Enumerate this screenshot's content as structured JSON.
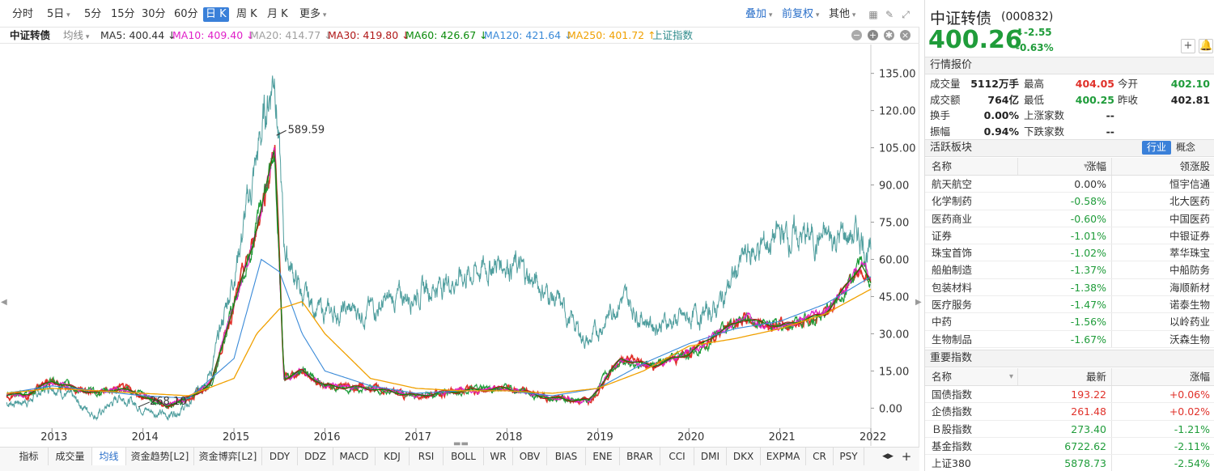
{
  "toolbar": {
    "periods": [
      {
        "label": "分时"
      },
      {
        "label": "5日",
        "dropdown": true
      },
      {
        "label": "5分"
      },
      {
        "label": "15分"
      },
      {
        "label": "30分"
      },
      {
        "label": "60分"
      },
      {
        "label": "日 K",
        "active": true
      },
      {
        "label": "周 K"
      },
      {
        "label": "月 K"
      },
      {
        "label": "更多",
        "dropdown": true
      }
    ],
    "overlay": "叠加",
    "adjust": "前复权",
    "other": "其他"
  },
  "ma_bar": {
    "name": "中证转债",
    "ma_label": "均线",
    "items": [
      {
        "text": "MA5: 400.44 ↓",
        "color": "#333333"
      },
      {
        "text": "MA10: 409.40 ↓",
        "color": "#e020c8"
      },
      {
        "text": "MA20: 414.77 ↓",
        "color": "#a0a0a0"
      },
      {
        "text": "MA30: 419.80 ↓",
        "color": "#b01818"
      },
      {
        "text": "MA60: 426.67 ↓",
        "color": "#0a8a0a"
      },
      {
        "text": "MA120: 421.64 ↓",
        "color": "#3a8ad8"
      },
      {
        "text": "MA250: 401.72 ↑",
        "color": "#f0a000"
      },
      {
        "text": "上证指数",
        "color": "#2e8b8b"
      }
    ]
  },
  "chart_data": {
    "type": "line",
    "title": "",
    "y_ticks": [
      "135.00",
      "120.00",
      "105.00",
      "90.00",
      "75.00",
      "60.00",
      "45.00",
      "30.00",
      "15.00",
      "0.00"
    ],
    "x_ticks": [
      "2013",
      "2014",
      "2015",
      "2016",
      "2017",
      "2018",
      "2019",
      "2020",
      "2021",
      "2022"
    ],
    "annotations": [
      {
        "text": "589.59",
        "at": "max"
      },
      {
        "text": "268.10",
        "at": "min"
      }
    ],
    "colors": {
      "index": "#4f9e9e",
      "price_up": "#e0312a",
      "price_down": "#1f9c3a",
      "ma5": "#333333",
      "ma10": "#e020c8",
      "ma30": "#b01818",
      "ma60": "#0a8a0a",
      "ma120": "#3a8ad8",
      "ma250": "#f0a000"
    },
    "series_shanghai_index": {
      "x": [
        2012.5,
        2012.75,
        2013.0,
        2013.25,
        2013.5,
        2013.75,
        2014.0,
        2014.25,
        2014.5,
        2014.75,
        2015.0,
        2015.2,
        2015.45,
        2015.55,
        2015.75,
        2016.0,
        2016.5,
        2017.0,
        2017.5,
        2018.0,
        2018.5,
        2018.9,
        2019.25,
        2019.6,
        2020.0,
        2020.3,
        2020.6,
        2021.0,
        2021.5,
        2021.9,
        2022.0
      ],
      "y": [
        2.0,
        3.0,
        10.0,
        3.0,
        -3.0,
        5.0,
        0.0,
        -3.0,
        1.0,
        15.0,
        55.0,
        90.0,
        140.0,
        65.0,
        45.0,
        38.0,
        40.0,
        47.0,
        53.0,
        60.0,
        45.0,
        26.0,
        45.0,
        34.0,
        36.0,
        40.0,
        60.0,
        70.0,
        68.0,
        70.0,
        60.0
      ]
    },
    "series_bond_index": {
      "x": [
        2012.5,
        2012.75,
        2013.0,
        2013.25,
        2013.5,
        2013.75,
        2014.0,
        2014.25,
        2014.5,
        2014.75,
        2015.0,
        2015.2,
        2015.45,
        2015.55,
        2015.75,
        2016.0,
        2016.5,
        2017.0,
        2017.5,
        2018.0,
        2018.5,
        2018.9,
        2019.25,
        2019.6,
        2020.0,
        2020.3,
        2020.6,
        2021.0,
        2021.5,
        2021.9,
        2022.0
      ],
      "y": [
        5.0,
        6.0,
        11.0,
        8.0,
        6.0,
        8.0,
        5.0,
        1.0,
        4.0,
        10.0,
        42.0,
        65.0,
        105.0,
        12.0,
        15.0,
        9.0,
        8.0,
        5.0,
        7.0,
        8.0,
        4.0,
        3.0,
        20.0,
        17.0,
        22.0,
        30.0,
        36.0,
        33.0,
        38.0,
        58.0,
        50.0
      ]
    },
    "series_ma250": {
      "x": [
        2012.5,
        2013.0,
        2013.5,
        2014.0,
        2014.5,
        2015.0,
        2015.25,
        2015.5,
        2015.75,
        2016.0,
        2016.5,
        2017.0,
        2017.5,
        2018.0,
        2018.5,
        2019.0,
        2019.5,
        2020.0,
        2020.5,
        2021.0,
        2021.5,
        2022.0
      ],
      "y": [
        6.0,
        8.0,
        7.0,
        6.0,
        5.0,
        12.0,
        30.0,
        40.0,
        43.0,
        30.0,
        12.0,
        8.0,
        7.0,
        7.0,
        6.0,
        8.0,
        15.0,
        25.0,
        28.0,
        32.0,
        38.0,
        48.0
      ]
    },
    "series_ma120": {
      "x": [
        2012.5,
        2013.0,
        2013.5,
        2014.0,
        2014.5,
        2015.0,
        2015.3,
        2015.5,
        2015.75,
        2016.0,
        2016.5,
        2017.0,
        2017.5,
        2018.0,
        2018.5,
        2019.0,
        2019.5,
        2020.0,
        2020.5,
        2021.0,
        2021.5,
        2022.0
      ],
      "y": [
        6.0,
        9.0,
        7.0,
        5.0,
        4.0,
        20.0,
        60.0,
        55.0,
        30.0,
        15.0,
        9.0,
        6.0,
        7.0,
        7.0,
        5.0,
        8.0,
        18.0,
        26.0,
        32.0,
        35.0,
        42.0,
        53.0
      ]
    }
  },
  "quote": {
    "name": "中证转债",
    "code": "(000832)",
    "price": "400.26",
    "change": "⬇-2.55",
    "pct": "-0.63%"
  },
  "market": {
    "header": "行情报价",
    "rows": [
      [
        {
          "l": "成交量",
          "v": "5112万手"
        },
        {
          "l": "最高",
          "v": "404.05",
          "c": "red"
        },
        {
          "l": "今开",
          "v": "402.10",
          "c": "green"
        }
      ],
      [
        {
          "l": "成交额",
          "v": "764亿"
        },
        {
          "l": "最低",
          "v": "400.25",
          "c": "green"
        },
        {
          "l": "昨收",
          "v": "402.81"
        }
      ],
      [
        {
          "l": "换手",
          "v": "0.00%"
        },
        {
          "l": "上涨家数",
          "v": "--"
        }
      ],
      [
        {
          "l": "振幅",
          "v": "0.94%"
        },
        {
          "l": "下跌家数",
          "v": "--"
        }
      ]
    ]
  },
  "sectors": {
    "header": "活跃板块",
    "tab_industry": "行业",
    "tab_concept": "概念",
    "col_name": "名称",
    "col_change": "涨幅",
    "col_leader": "领涨股",
    "rows": [
      {
        "name": "航天航空",
        "change": "0.00%",
        "leader": "恒宇信通",
        "c": ""
      },
      {
        "name": "化学制药",
        "change": "-0.58%",
        "leader": "北大医药",
        "c": "green"
      },
      {
        "name": "医药商业",
        "change": "-0.60%",
        "leader": "中国医药",
        "c": "green"
      },
      {
        "name": "证券",
        "change": "-1.01%",
        "leader": "中银证券",
        "c": "green"
      },
      {
        "name": "珠宝首饰",
        "change": "-1.02%",
        "leader": "萃华珠宝",
        "c": "green"
      },
      {
        "name": "船舶制造",
        "change": "-1.37%",
        "leader": "中船防务",
        "c": "green"
      },
      {
        "name": "包装材料",
        "change": "-1.38%",
        "leader": "海顺新材",
        "c": "green"
      },
      {
        "name": "医疗服务",
        "change": "-1.47%",
        "leader": "诺泰生物",
        "c": "green"
      },
      {
        "name": "中药",
        "change": "-1.56%",
        "leader": "以岭药业",
        "c": "green"
      },
      {
        "name": "生物制品",
        "change": "-1.67%",
        "leader": "沃森生物",
        "c": "green"
      }
    ]
  },
  "indices": {
    "header": "重要指数",
    "col_name": "名称",
    "col_latest": "最新",
    "col_change": "涨幅",
    "rows": [
      {
        "name": "国债指数",
        "latest": "193.22",
        "change": "+0.06%",
        "c": "red"
      },
      {
        "name": "企债指数",
        "latest": "261.48",
        "change": "+0.02%",
        "c": "red"
      },
      {
        "name": "Ｂ股指数",
        "latest": "273.40",
        "change": "-1.21%",
        "c": "green"
      },
      {
        "name": "基金指数",
        "latest": "6722.62",
        "change": "-2.11%",
        "c": "green"
      },
      {
        "name": "上证380",
        "latest": "5878.73",
        "change": "-2.54%",
        "c": "green"
      }
    ]
  },
  "bottom_tabs": [
    {
      "label": "指标"
    },
    {
      "label": "成交量"
    },
    {
      "label": "均线",
      "active": true
    },
    {
      "label": "资金趋势[L2]"
    },
    {
      "label": "资金博弈[L2]"
    },
    {
      "label": "DDY"
    },
    {
      "label": "DDZ"
    },
    {
      "label": "MACD"
    },
    {
      "label": "KDJ"
    },
    {
      "label": "RSI"
    },
    {
      "label": "BOLL"
    },
    {
      "label": "WR"
    },
    {
      "label": "OBV"
    },
    {
      "label": "BIAS"
    },
    {
      "label": "ENE"
    },
    {
      "label": "BRAR"
    },
    {
      "label": "CCI"
    },
    {
      "label": "DMI"
    },
    {
      "label": "DKX"
    },
    {
      "label": "EXPMA"
    },
    {
      "label": "CR"
    },
    {
      "label": "PSY"
    }
  ]
}
